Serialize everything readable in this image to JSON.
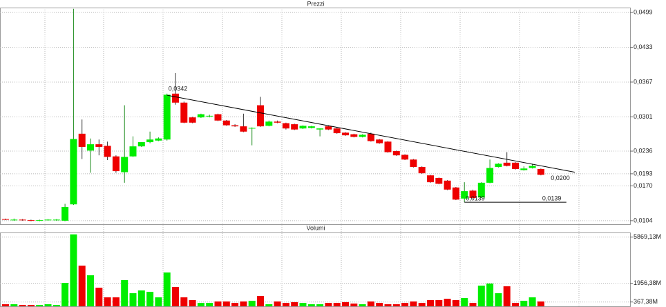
{
  "chart_data": [
    {
      "type": "candlestick",
      "title": "Prezzi",
      "up_color": "#00ee00",
      "down_color": "#ee0000",
      "open": [
        0.0107,
        0.0105,
        0.0106,
        0.0105,
        0.0104,
        0.0105,
        0.0105,
        0.0104,
        0.0135,
        0.0269,
        0.0237,
        0.0249,
        0.0246,
        0.0226,
        0.0196,
        0.0226,
        0.0245,
        0.0253,
        0.0256,
        0.0258,
        0.0345,
        0.0328,
        0.03,
        0.03,
        0.0302,
        0.0306,
        0.0294,
        0.0285,
        0.0283,
        0.0279,
        0.0323,
        0.0284,
        0.0292,
        0.0289,
        0.0287,
        0.0279,
        0.028,
        0.0277,
        0.0283,
        0.0279,
        0.0271,
        0.0268,
        0.0263,
        0.0269,
        0.0258,
        0.0254,
        0.0236,
        0.0229,
        0.022,
        0.0206,
        0.019,
        0.0185,
        0.018,
        0.0167,
        0.0146,
        0.0161,
        0.0148,
        0.0176,
        0.0206,
        0.0214,
        0.0214,
        0.02,
        0.0204,
        0.0202
      ],
      "high": [
        0.0108,
        0.0108,
        0.0107,
        0.0106,
        0.0106,
        0.0107,
        0.0107,
        0.0136,
        0.0506,
        0.0296,
        0.026,
        0.0258,
        0.0254,
        0.0228,
        0.0323,
        0.0264,
        0.0253,
        0.0273,
        0.0262,
        0.0345,
        0.0384,
        0.033,
        0.0301,
        0.0307,
        0.0305,
        0.0307,
        0.0295,
        0.0287,
        0.0307,
        0.0281,
        0.0339,
        0.0294,
        0.0294,
        0.029,
        0.0288,
        0.0285,
        0.0284,
        0.0279,
        0.0285,
        0.028,
        0.0272,
        0.0269,
        0.0268,
        0.0271,
        0.0259,
        0.0255,
        0.0237,
        0.023,
        0.0221,
        0.0207,
        0.0191,
        0.0186,
        0.0181,
        0.0168,
        0.0177,
        0.0163,
        0.0177,
        0.022,
        0.0213,
        0.0234,
        0.0215,
        0.0207,
        0.0212,
        0.0203
      ],
      "low": [
        0.0105,
        0.0104,
        0.0104,
        0.0103,
        0.0103,
        0.0104,
        0.0104,
        0.0103,
        0.0134,
        0.0221,
        0.0195,
        0.0228,
        0.0219,
        0.0195,
        0.0176,
        0.0225,
        0.0244,
        0.0251,
        0.0255,
        0.0256,
        0.0324,
        0.0289,
        0.0289,
        0.0299,
        0.03,
        0.0293,
        0.0284,
        0.0282,
        0.0272,
        0.0247,
        0.0282,
        0.0283,
        0.0289,
        0.0277,
        0.0276,
        0.0278,
        0.0279,
        0.0264,
        0.0276,
        0.0269,
        0.0265,
        0.0262,
        0.0262,
        0.0254,
        0.025,
        0.0233,
        0.0227,
        0.0219,
        0.0205,
        0.0193,
        0.0176,
        0.0173,
        0.0162,
        0.0143,
        0.0139,
        0.0145,
        0.0147,
        0.0175,
        0.0205,
        0.0207,
        0.0201,
        0.0199,
        0.0203,
        0.019
      ],
      "close": [
        0.0106,
        0.0106,
        0.0105,
        0.0104,
        0.0105,
        0.0106,
        0.0106,
        0.013,
        0.0259,
        0.0244,
        0.0249,
        0.0244,
        0.0225,
        0.0198,
        0.0225,
        0.0245,
        0.0253,
        0.0258,
        0.026,
        0.0343,
        0.0328,
        0.029,
        0.029,
        0.0306,
        0.0303,
        0.0294,
        0.0285,
        0.0283,
        0.0273,
        0.028,
        0.0283,
        0.0292,
        0.029,
        0.0279,
        0.0277,
        0.0284,
        0.0283,
        0.0279,
        0.0277,
        0.027,
        0.0266,
        0.0263,
        0.0267,
        0.0255,
        0.0251,
        0.0234,
        0.0228,
        0.022,
        0.0206,
        0.0194,
        0.0177,
        0.0174,
        0.0163,
        0.0144,
        0.016,
        0.0147,
        0.0176,
        0.0204,
        0.0212,
        0.0208,
        0.0202,
        0.0203,
        0.0208,
        0.0191
      ],
      "ylim": [
        0.0096,
        0.0507
      ],
      "yticks": [
        {
          "value": 0.0499,
          "label": "0,0499"
        },
        {
          "value": 0.0433,
          "label": "0,0433"
        },
        {
          "value": 0.0367,
          "label": "0,0367"
        },
        {
          "value": 0.0301,
          "label": "0,0301"
        },
        {
          "value": 0.0236,
          "label": "0,0236"
        },
        {
          "value": 0.0193,
          "label": "0,0193"
        },
        {
          "value": 0.017,
          "label": "0,0170"
        },
        {
          "value": 0.0104,
          "label": "0,0104"
        }
      ],
      "grid": true,
      "lines": [
        {
          "x": [
            19,
            67
          ],
          "y": [
            0.0342,
            0.0196
          ]
        },
        {
          "x": [
            54,
            66
          ],
          "y": [
            0.0139,
            0.0139
          ]
        }
      ],
      "annotations": [
        {
          "text": "0,0342",
          "x": 19,
          "y": 0.0342
        },
        {
          "text": "0,0200",
          "x": 64,
          "y": 0.02
        },
        {
          "text": "0,0139",
          "x": 54,
          "y": 0.0139
        },
        {
          "text": "0,0139",
          "x": 63,
          "y": 0.0139
        }
      ]
    },
    {
      "type": "bar",
      "title": "Volumi",
      "values": [
        175,
        175,
        117,
        117,
        117,
        175,
        117,
        1989,
        6100,
        3450,
        2630,
        1580,
        760,
        760,
        2220,
        1110,
        1345,
        1230,
        760,
        2870,
        1640,
        760,
        530,
        290,
        290,
        410,
        410,
        290,
        410,
        470,
        880,
        175,
        410,
        290,
        350,
        290,
        175,
        175,
        290,
        290,
        350,
        235,
        175,
        410,
        290,
        175,
        175,
        290,
        410,
        290,
        530,
        530,
        640,
        530,
        700,
        290,
        1755,
        1930,
        1110,
        1700,
        290,
        470,
        760,
        410
      ],
      "ylim": [
        0,
        6200
      ],
      "yticks": [
        {
          "value": 5869.13,
          "label": "5869,13M"
        },
        {
          "value": 1956.38,
          "label": "1956,38M"
        },
        {
          "value": 367.38,
          "label": "367,38M"
        }
      ],
      "grid": true
    }
  ]
}
